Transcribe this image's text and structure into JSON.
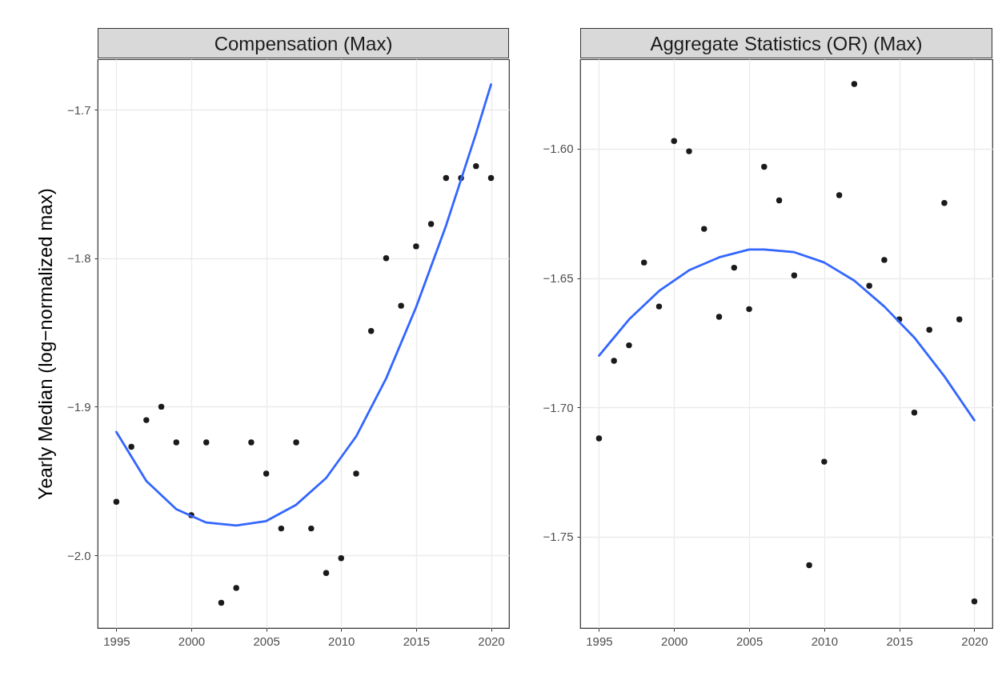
{
  "chart_data": [
    {
      "type": "scatter",
      "title": "Compensation (Max)",
      "ylabel": "Yearly Median (log−normalized max)",
      "grid": true,
      "xlim": [
        1993.75,
        2021.2
      ],
      "xticks": [
        1995,
        2000,
        2005,
        2010,
        2015,
        2020
      ],
      "ylim": [
        -2.049,
        -1.666
      ],
      "yticks": [
        {
          "value": -1.7,
          "label": "−1.7"
        },
        {
          "value": -1.8,
          "label": "−1.8"
        },
        {
          "value": -1.9,
          "label": "−1.9"
        },
        {
          "value": -2.0,
          "label": "−2.0"
        }
      ],
      "series": [
        {
          "color": "#1a1a1a",
          "marker": "circle",
          "x": [
            1995,
            1996,
            1997,
            1998,
            1999,
            2000,
            2001,
            2002,
            2003,
            2004,
            2005,
            2006,
            2007,
            2008,
            2009,
            2010,
            2011,
            2012,
            2013,
            2014,
            2015,
            2016,
            2017,
            2018,
            2019,
            2020
          ],
          "values": [
            -1.964,
            -1.927,
            -1.909,
            -1.9,
            -1.924,
            -1.973,
            -1.924,
            -2.032,
            -2.022,
            -1.924,
            -1.945,
            -1.982,
            -1.924,
            -1.982,
            -2.012,
            -2.002,
            -1.945,
            -1.849,
            -1.8,
            -1.832,
            -1.792,
            -1.777,
            -1.746,
            -1.746,
            -1.738,
            -1.746
          ]
        },
        {
          "type": "line",
          "color": "#3366ff",
          "x": [
            1995,
            1997,
            1999,
            2001,
            2003,
            2005,
            2007,
            2009,
            2011,
            2013,
            2015,
            2017,
            2019,
            2020
          ],
          "values": [
            -1.917,
            -1.95,
            -1.969,
            -1.978,
            -1.98,
            -1.977,
            -1.966,
            -1.948,
            -1.92,
            -1.881,
            -1.833,
            -1.778,
            -1.716,
            -1.683
          ]
        }
      ]
    },
    {
      "type": "scatter",
      "title": "Aggregate Statistics (OR) (Max)",
      "grid": true,
      "xlim": [
        1993.75,
        2021.2
      ],
      "xticks": [
        1995,
        2000,
        2005,
        2010,
        2015,
        2020
      ],
      "ylim": [
        -1.7853,
        -1.5654
      ],
      "yticks": [
        {
          "value": -1.6,
          "label": "−1.60"
        },
        {
          "value": -1.65,
          "label": "−1.65"
        },
        {
          "value": -1.7,
          "label": "−1.70"
        },
        {
          "value": -1.75,
          "label": "−1.75"
        }
      ],
      "series": [
        {
          "color": "#1a1a1a",
          "marker": "circle",
          "x": [
            1995,
            1996,
            1997,
            1998,
            1999,
            2000,
            2001,
            2002,
            2003,
            2004,
            2005,
            2006,
            2007,
            2008,
            2009,
            2010,
            2011,
            2012,
            2013,
            2014,
            2015,
            2016,
            2017,
            2018,
            2019,
            2020
          ],
          "values": [
            -1.712,
            -1.682,
            -1.676,
            -1.644,
            -1.661,
            -1.597,
            -1.601,
            -1.631,
            -1.665,
            -1.646,
            -1.662,
            -1.607,
            -1.62,
            -1.649,
            -1.761,
            -1.721,
            -1.618,
            -1.575,
            -1.653,
            -1.643,
            -1.666,
            -1.702,
            -1.67,
            -1.621,
            -1.666,
            -1.775
          ]
        },
        {
          "type": "line",
          "color": "#3366ff",
          "x": [
            1995,
            1997,
            1999,
            2001,
            2003,
            2005,
            2006,
            2008,
            2010,
            2012,
            2014,
            2016,
            2018,
            2020
          ],
          "values": [
            -1.68,
            -1.666,
            -1.655,
            -1.647,
            -1.642,
            -1.639,
            -1.639,
            -1.64,
            -1.644,
            -1.651,
            -1.661,
            -1.673,
            -1.688,
            -1.705
          ]
        }
      ]
    }
  ]
}
